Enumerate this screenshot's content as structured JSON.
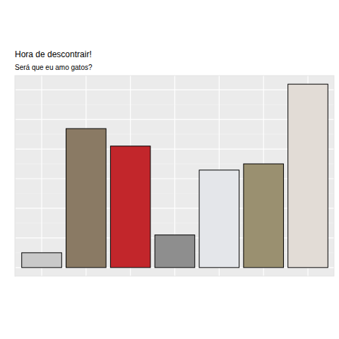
{
  "chart_data": {
    "type": "bar",
    "title": "Hora de descontrair!",
    "subtitle": "Será que eu amo gatos?",
    "categories": [
      null,
      null,
      null,
      null,
      null,
      null,
      null
    ],
    "values": [
      0.5,
      4.69,
      4.1,
      1.1,
      3.29,
      3.5,
      6.19
    ],
    "colors": [
      "#c9c9c9",
      "#8a7a64",
      "#c2262b",
      "#8e8e8e",
      "#e4e6ea",
      "#9a9070",
      "#e2dcd6"
    ],
    "ylim": [
      -0.29,
      6.48
    ],
    "yticks": [
      0,
      1,
      2,
      3,
      4,
      5,
      6
    ],
    "grid": true,
    "tick_labels": false
  }
}
